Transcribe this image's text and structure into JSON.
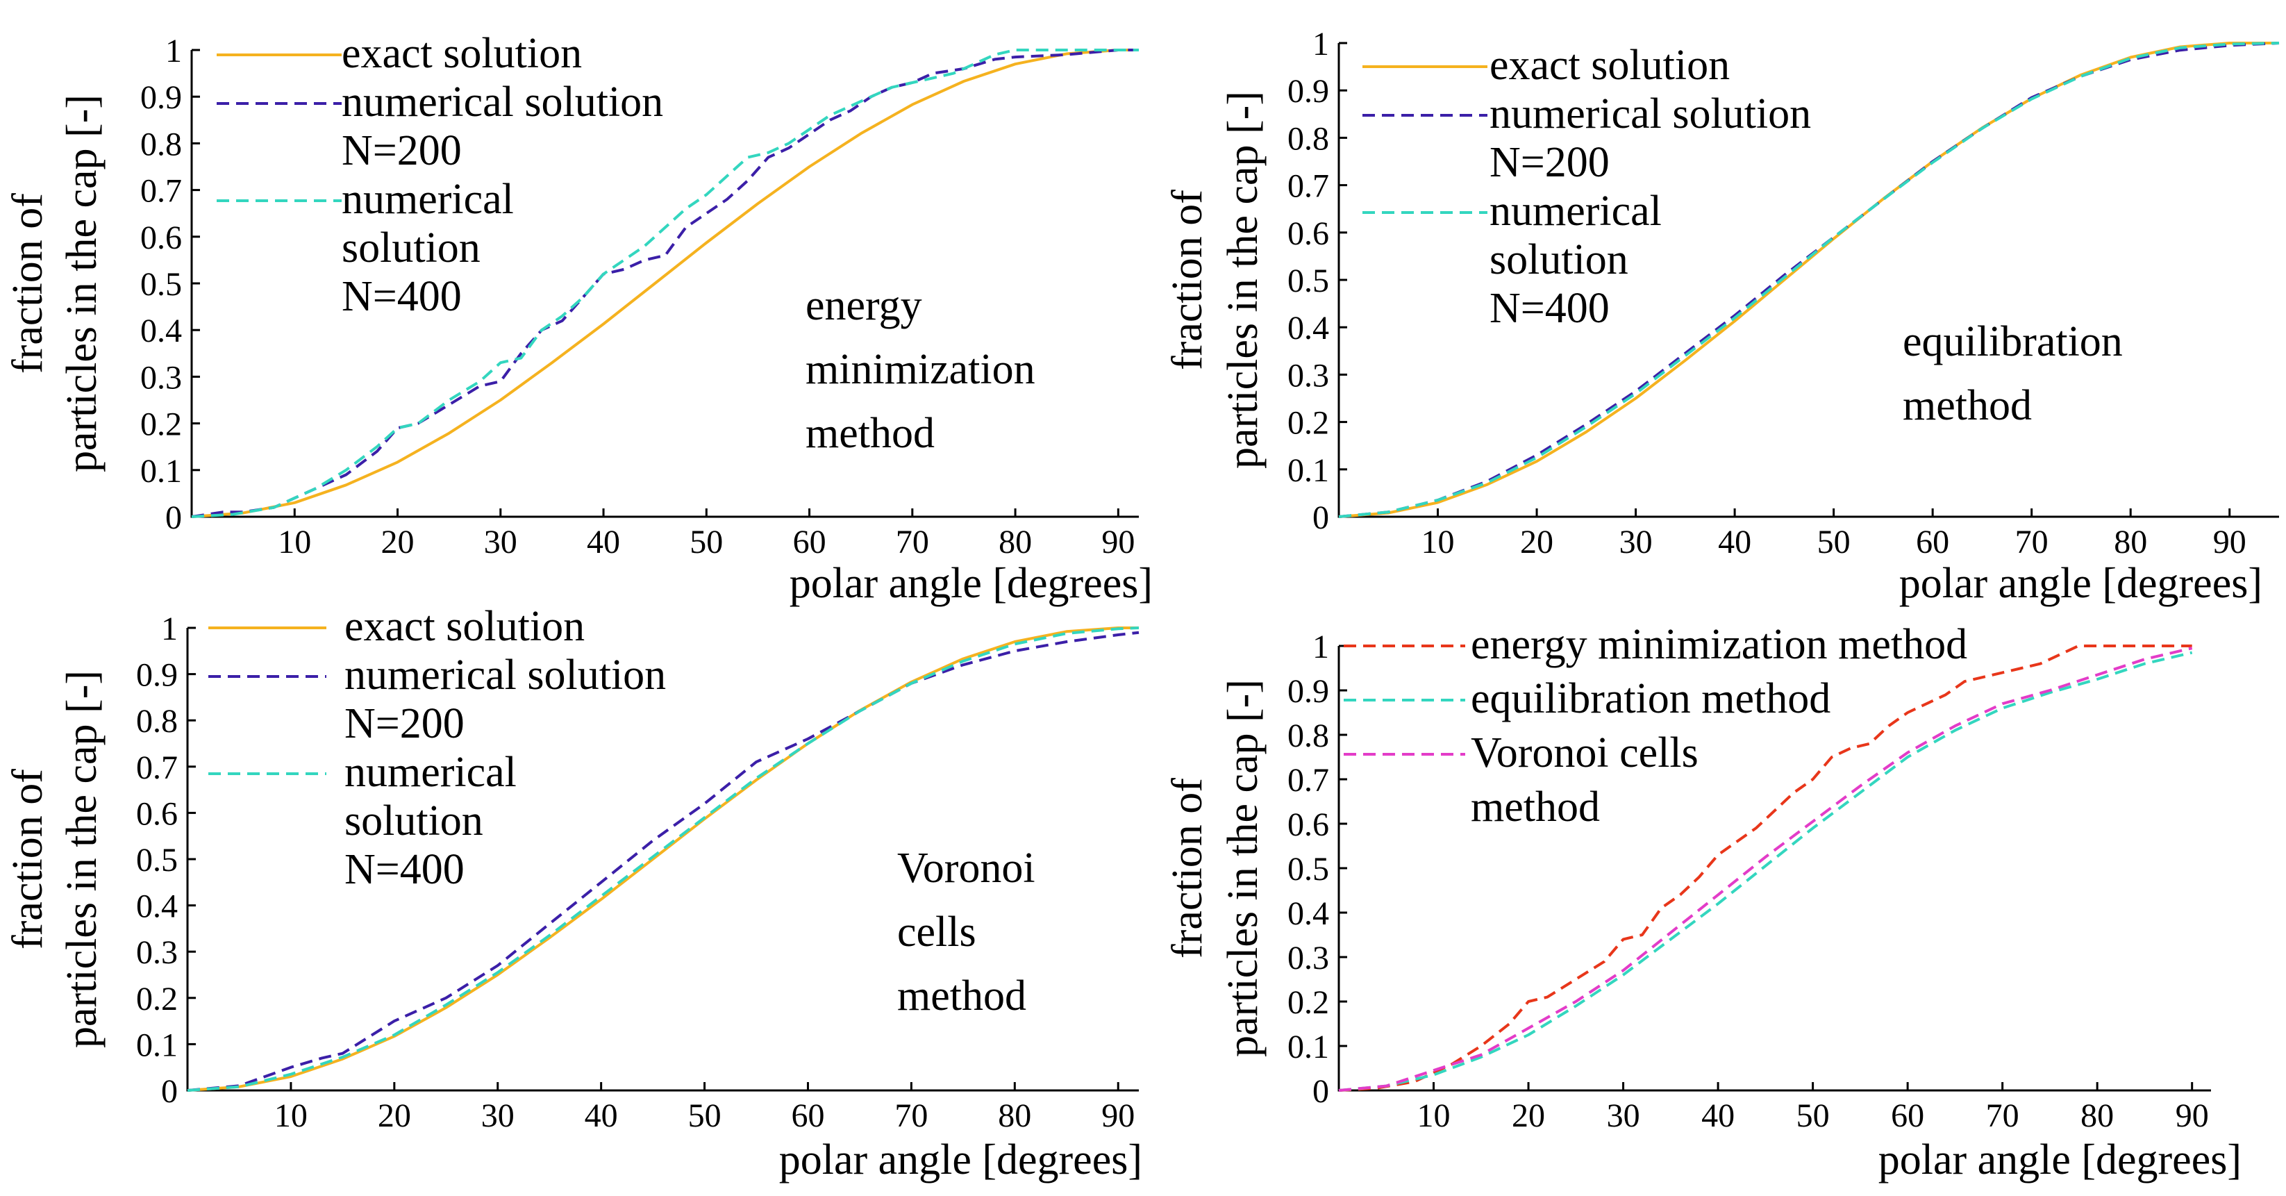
{
  "colors": {
    "exact": "#f5b21f",
    "n200": "#3b1fa8",
    "n400": "#33d6bf",
    "energy": "#e8361a",
    "equilibration": "#33d6bf",
    "voronoi": "#e33cc8",
    "axis": "#000000"
  },
  "chart_data": [
    {
      "type": "line",
      "panel": "top-left",
      "xlabel": "polar angle [degrees]",
      "ylabel_line1": "fraction of",
      "ylabel_line2": "particles in the cap [-]",
      "xlim": [
        0,
        92
      ],
      "ylim": [
        0,
        1
      ],
      "xticks": [
        10,
        20,
        30,
        40,
        50,
        60,
        70,
        80,
        90
      ],
      "yticks": [
        0,
        0.1,
        0.2,
        0.3,
        0.4,
        0.5,
        0.6,
        0.7,
        0.8,
        0.9,
        1
      ],
      "annotation": [
        "energy",
        "minimization",
        "method"
      ],
      "annotation_placement": "center-right",
      "legend": [
        {
          "key": "exact",
          "lines": [
            "exact solution"
          ]
        },
        {
          "key": "n200",
          "lines": [
            "numerical solution",
            "N=200"
          ]
        },
        {
          "key": "n400",
          "lines": [
            "numerical",
            "solution",
            "N=400"
          ]
        }
      ],
      "series": [
        {
          "name": "exact solution",
          "color_key": "exact",
          "style": "solid",
          "x": [
            0,
            5,
            10,
            15,
            20,
            25,
            30,
            35,
            40,
            45,
            50,
            55,
            60,
            65,
            70,
            75,
            80,
            85,
            90,
            92
          ],
          "y": [
            0,
            0.008,
            0.03,
            0.068,
            0.117,
            0.179,
            0.25,
            0.33,
            0.413,
            0.5,
            0.587,
            0.671,
            0.75,
            0.821,
            0.883,
            0.933,
            0.97,
            0.992,
            1.0,
            1.0
          ]
        },
        {
          "name": "numerical solution N=200",
          "color_key": "n200",
          "style": "dashed",
          "x": [
            0,
            3,
            5,
            8,
            10,
            12,
            15,
            18,
            20,
            22,
            25,
            28,
            30,
            32,
            34,
            36,
            38,
            40,
            42,
            44,
            46,
            48,
            50,
            52,
            54,
            56,
            58,
            60,
            62,
            64,
            66,
            68,
            70,
            72,
            75,
            78,
            80,
            85,
            90,
            92
          ],
          "y": [
            0,
            0.01,
            0.01,
            0.02,
            0.04,
            0.06,
            0.09,
            0.14,
            0.19,
            0.2,
            0.24,
            0.28,
            0.29,
            0.35,
            0.4,
            0.42,
            0.47,
            0.52,
            0.53,
            0.55,
            0.56,
            0.62,
            0.65,
            0.68,
            0.72,
            0.77,
            0.79,
            0.82,
            0.85,
            0.87,
            0.9,
            0.92,
            0.93,
            0.95,
            0.96,
            0.98,
            0.985,
            0.99,
            1.0,
            1.0
          ]
        },
        {
          "name": "numerical solution N=400",
          "color_key": "n400",
          "style": "dashed",
          "x": [
            0,
            4,
            8,
            10,
            12,
            15,
            18,
            20,
            22,
            25,
            28,
            30,
            32,
            34,
            36,
            38,
            40,
            42,
            44,
            46,
            48,
            50,
            52,
            54,
            56,
            58,
            60,
            62,
            64,
            66,
            68,
            70,
            72,
            74,
            76,
            78,
            80,
            85,
            90,
            92
          ],
          "y": [
            0,
            0.005,
            0.02,
            0.04,
            0.06,
            0.1,
            0.15,
            0.19,
            0.2,
            0.25,
            0.29,
            0.33,
            0.34,
            0.4,
            0.43,
            0.47,
            0.52,
            0.55,
            0.58,
            0.62,
            0.66,
            0.69,
            0.73,
            0.77,
            0.78,
            0.8,
            0.83,
            0.86,
            0.88,
            0.9,
            0.92,
            0.93,
            0.94,
            0.95,
            0.97,
            0.99,
            1.0,
            1.0,
            1.0,
            1.0
          ]
        }
      ]
    },
    {
      "type": "line",
      "panel": "top-right",
      "xlabel": "polar angle [degrees]",
      "ylabel_line1": "fraction of",
      "ylabel_line2": "particles in the cap [-]",
      "xlim": [
        0,
        95
      ],
      "ylim": [
        0,
        1
      ],
      "xticks": [
        10,
        20,
        30,
        40,
        50,
        60,
        70,
        80,
        90
      ],
      "yticks": [
        0,
        0.1,
        0.2,
        0.3,
        0.4,
        0.5,
        0.6,
        0.7,
        0.8,
        0.9,
        1
      ],
      "annotation": [
        "equilibration",
        "method"
      ],
      "annotation_placement": "center-right",
      "legend": [
        {
          "key": "exact",
          "lines": [
            "exact solution"
          ]
        },
        {
          "key": "n200",
          "lines": [
            "numerical solution",
            "N=200"
          ]
        },
        {
          "key": "n400",
          "lines": [
            "numerical",
            "solution",
            "N=400"
          ]
        }
      ],
      "series": [
        {
          "name": "exact solution",
          "color_key": "exact",
          "style": "solid",
          "x": [
            0,
            5,
            10,
            15,
            20,
            25,
            30,
            35,
            40,
            45,
            50,
            55,
            60,
            65,
            70,
            75,
            80,
            85,
            90,
            95
          ],
          "y": [
            0,
            0.008,
            0.03,
            0.068,
            0.117,
            0.179,
            0.25,
            0.33,
            0.413,
            0.5,
            0.587,
            0.671,
            0.75,
            0.821,
            0.883,
            0.933,
            0.97,
            0.992,
            1.0,
            1.0
          ]
        },
        {
          "name": "numerical solution N=200",
          "color_key": "n200",
          "style": "dashed",
          "x": [
            0,
            5,
            10,
            15,
            20,
            25,
            30,
            35,
            40,
            45,
            50,
            55,
            60,
            65,
            70,
            75,
            80,
            85,
            90,
            95
          ],
          "y": [
            0,
            0.01,
            0.035,
            0.075,
            0.13,
            0.195,
            0.265,
            0.345,
            0.425,
            0.51,
            0.59,
            0.67,
            0.75,
            0.82,
            0.885,
            0.93,
            0.965,
            0.985,
            0.995,
            1.0
          ]
        },
        {
          "name": "numerical solution N=400",
          "color_key": "n400",
          "style": "dashed",
          "x": [
            0,
            5,
            10,
            15,
            20,
            25,
            30,
            35,
            40,
            45,
            50,
            55,
            60,
            65,
            70,
            75,
            80,
            85,
            90,
            95
          ],
          "y": [
            0,
            0.01,
            0.035,
            0.072,
            0.125,
            0.19,
            0.26,
            0.34,
            0.42,
            0.505,
            0.59,
            0.67,
            0.748,
            0.82,
            0.882,
            0.93,
            0.968,
            0.99,
            0.998,
            1.0
          ]
        }
      ]
    },
    {
      "type": "line",
      "panel": "bottom-left",
      "xlabel": "polar angle [degrees]",
      "ylabel_line1": "fraction of",
      "ylabel_line2": "particles in the cap [-]",
      "xlim": [
        0,
        92
      ],
      "ylim": [
        0,
        1
      ],
      "xticks": [
        10,
        20,
        30,
        40,
        50,
        60,
        70,
        80,
        90
      ],
      "yticks": [
        0,
        0.1,
        0.2,
        0.3,
        0.4,
        0.5,
        0.6,
        0.7,
        0.8,
        0.9,
        1
      ],
      "annotation": [
        "Voronoi",
        "cells",
        "method"
      ],
      "annotation_placement": "center-right",
      "legend": [
        {
          "key": "exact",
          "lines": [
            "exact solution"
          ]
        },
        {
          "key": "n200",
          "lines": [
            "numerical solution",
            "N=200"
          ]
        },
        {
          "key": "n400",
          "lines": [
            "numerical",
            "solution",
            "N=400"
          ]
        }
      ],
      "series": [
        {
          "name": "exact solution",
          "color_key": "exact",
          "style": "solid",
          "x": [
            0,
            5,
            10,
            15,
            20,
            25,
            30,
            35,
            40,
            45,
            50,
            55,
            60,
            65,
            70,
            75,
            80,
            85,
            90,
            92
          ],
          "y": [
            0,
            0.008,
            0.03,
            0.068,
            0.117,
            0.179,
            0.25,
            0.33,
            0.413,
            0.5,
            0.587,
            0.671,
            0.75,
            0.821,
            0.883,
            0.933,
            0.97,
            0.992,
            1.0,
            1.0
          ]
        },
        {
          "name": "numerical solution N=200",
          "color_key": "n200",
          "style": "dashed",
          "x": [
            0,
            5,
            10,
            13,
            15,
            20,
            25,
            30,
            35,
            40,
            45,
            50,
            55,
            60,
            65,
            70,
            75,
            80,
            85,
            90,
            92
          ],
          "y": [
            0,
            0.01,
            0.05,
            0.07,
            0.08,
            0.15,
            0.2,
            0.27,
            0.36,
            0.45,
            0.54,
            0.62,
            0.71,
            0.76,
            0.82,
            0.88,
            0.92,
            0.95,
            0.97,
            0.985,
            0.99
          ]
        },
        {
          "name": "numerical solution N=400",
          "color_key": "n400",
          "style": "dashed",
          "x": [
            0,
            5,
            10,
            15,
            20,
            25,
            30,
            35,
            40,
            45,
            50,
            55,
            60,
            65,
            70,
            75,
            80,
            85,
            90,
            92
          ],
          "y": [
            0,
            0.008,
            0.035,
            0.072,
            0.12,
            0.185,
            0.255,
            0.335,
            0.42,
            0.505,
            0.59,
            0.675,
            0.75,
            0.82,
            0.88,
            0.928,
            0.965,
            0.988,
            0.998,
            1.0
          ]
        }
      ]
    },
    {
      "type": "line",
      "panel": "bottom-right",
      "xlabel": "polar angle [degrees]",
      "ylabel_line1": "fraction of",
      "ylabel_line2": "particles in the cap [-]",
      "xlim": [
        0,
        92
      ],
      "ylim": [
        0,
        1
      ],
      "xticks": [
        10,
        20,
        30,
        40,
        50,
        60,
        70,
        80,
        90
      ],
      "yticks": [
        0,
        0.1,
        0.2,
        0.3,
        0.4,
        0.5,
        0.6,
        0.7,
        0.8,
        0.9,
        1
      ],
      "annotation": [],
      "legend": [
        {
          "key": "energy",
          "lines": [
            "energy minimization method"
          ]
        },
        {
          "key": "equilibration",
          "lines": [
            "equilibration method"
          ]
        },
        {
          "key": "voronoi",
          "lines": [
            "Voronoi cells",
            "method"
          ]
        }
      ],
      "series": [
        {
          "name": "energy minimization method",
          "color_key": "energy",
          "style": "dashed",
          "x": [
            0,
            4,
            8,
            10,
            12,
            15,
            18,
            20,
            22,
            25,
            28,
            30,
            32,
            34,
            36,
            38,
            40,
            42,
            44,
            46,
            48,
            50,
            52,
            54,
            56,
            58,
            60,
            62,
            64,
            66,
            68,
            70,
            72,
            74,
            76,
            78,
            80,
            85,
            90
          ],
          "y": [
            0,
            0.005,
            0.02,
            0.04,
            0.06,
            0.1,
            0.15,
            0.2,
            0.21,
            0.25,
            0.29,
            0.34,
            0.35,
            0.41,
            0.44,
            0.48,
            0.53,
            0.56,
            0.59,
            0.63,
            0.67,
            0.7,
            0.75,
            0.77,
            0.78,
            0.82,
            0.85,
            0.87,
            0.89,
            0.92,
            0.93,
            0.94,
            0.95,
            0.96,
            0.98,
            1.0,
            1.0,
            1.0,
            1.0
          ]
        },
        {
          "name": "equilibration method",
          "color_key": "equilibration",
          "style": "dashed",
          "x": [
            0,
            5,
            10,
            15,
            20,
            25,
            30,
            35,
            40,
            45,
            50,
            55,
            60,
            65,
            70,
            75,
            80,
            85,
            90
          ],
          "y": [
            0,
            0.01,
            0.035,
            0.075,
            0.125,
            0.19,
            0.26,
            0.34,
            0.42,
            0.505,
            0.59,
            0.67,
            0.75,
            0.81,
            0.86,
            0.895,
            0.925,
            0.96,
            0.985
          ]
        },
        {
          "name": "Voronoi cells method",
          "color_key": "voronoi",
          "style": "dashed",
          "x": [
            0,
            5,
            10,
            15,
            20,
            25,
            30,
            35,
            40,
            45,
            50,
            55,
            60,
            65,
            70,
            75,
            80,
            85,
            90
          ],
          "y": [
            0,
            0.01,
            0.045,
            0.08,
            0.14,
            0.2,
            0.27,
            0.355,
            0.44,
            0.525,
            0.605,
            0.685,
            0.76,
            0.82,
            0.87,
            0.9,
            0.935,
            0.97,
            0.995
          ]
        }
      ]
    }
  ]
}
